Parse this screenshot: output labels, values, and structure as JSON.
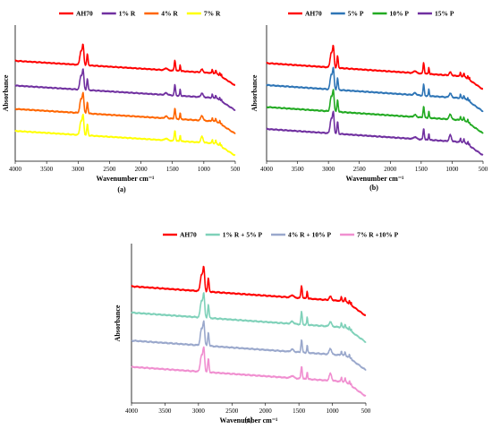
{
  "chart_data": [
    {
      "panel_label": "(a)",
      "type": "line",
      "xlabel": "Wavenumber cm⁻¹",
      "ylabel": "Absorbance",
      "xlim": [
        4000,
        500
      ],
      "x_reversed": true,
      "xticks": [
        "4000",
        "3500",
        "3000",
        "2500",
        "2000",
        "1500",
        "1000",
        "500"
      ],
      "yticks": [],
      "grid": false,
      "legend_position": "top",
      "series": [
        {
          "name": "AH70",
          "color": "#ff0000",
          "offset": 3.0
        },
        {
          "name": "1% R",
          "color": "#7030a0",
          "offset": 2.1
        },
        {
          "name": "4% R",
          "color": "#ff6600",
          "offset": 1.25
        },
        {
          "name": "7% R",
          "color": "#ffff00",
          "offset": 0.45
        }
      ]
    },
    {
      "panel_label": "(b)",
      "type": "line",
      "xlabel": "Wavenumber cm⁻¹",
      "ylabel": "Absorbance",
      "xlim": [
        4000,
        500
      ],
      "x_reversed": true,
      "xticks": [
        "4000",
        "3500",
        "3000",
        "2500",
        "2000",
        "1500",
        "1000",
        "500"
      ],
      "yticks": [],
      "grid": false,
      "legend_position": "top",
      "series": [
        {
          "name": "AH70",
          "color": "#ff0000",
          "offset": 3.3
        },
        {
          "name": "5% P",
          "color": "#2e75b6",
          "offset": 2.55
        },
        {
          "name": "10% P",
          "color": "#22aa22",
          "offset": 1.8
        },
        {
          "name": "15% P",
          "color": "#7030a0",
          "offset": 1.05
        }
      ]
    },
    {
      "panel_label": "(c)",
      "type": "line",
      "xlabel": "Wavenumber cm⁻¹",
      "ylabel": "Absorbance",
      "xlim": [
        4000,
        500
      ],
      "x_reversed": true,
      "xticks": [
        "4000",
        "3500",
        "3000",
        "2500",
        "2000",
        "1500",
        "1000",
        "500"
      ],
      "yticks": [],
      "grid": false,
      "legend_position": "top",
      "series": [
        {
          "name": "AH70",
          "color": "#ff0000",
          "offset": 3.4
        },
        {
          "name": "1% R + 5% P",
          "color": "#7fd1b9",
          "offset": 2.6
        },
        {
          "name": "4% R + 10% P",
          "color": "#9aa8cc",
          "offset": 1.75
        },
        {
          "name": "7% R +10% P",
          "color": "#f08fd0",
          "offset": 0.95
        }
      ]
    }
  ]
}
